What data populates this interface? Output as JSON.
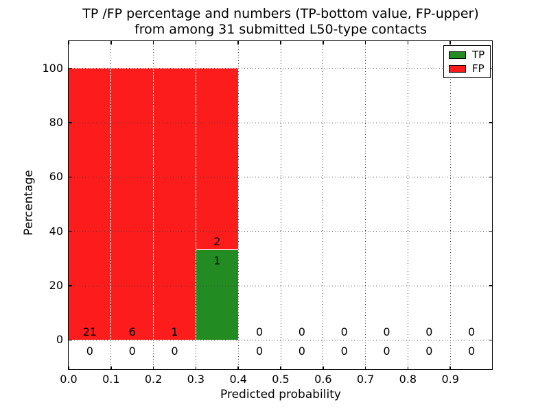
{
  "title": {
    "line1": "TP /FP percentage and numbers (TP-bottom value, FP-upper)",
    "line2": "from among 31 submitted L50-type contacts"
  },
  "colors": {
    "tp_green": "#228b22",
    "fp_red": "#fc1c1c",
    "axis": "#000000",
    "grid_dot": "#3a3a3a",
    "background": "#ffffff"
  },
  "chart_data": {
    "type": "bar",
    "stacked": true,
    "title": "TP /FP percentage and numbers (TP-bottom value, FP-upper)\nfrom among 31 submitted L50-type contacts",
    "xlabel": "Predicted probability",
    "ylabel": "Percentage",
    "xlim": [
      0.0,
      1.0
    ],
    "ylim": [
      -11,
      110
    ],
    "xticks": [
      "0.0",
      "0.1",
      "0.2",
      "0.3",
      "0.4",
      "0.5",
      "0.6",
      "0.7",
      "0.8",
      "0.9"
    ],
    "yticks": [
      0,
      20,
      40,
      60,
      80,
      100
    ],
    "grid": "dotted",
    "bin_width": 0.1,
    "bin_starts": [
      0.0,
      0.1,
      0.2,
      0.3,
      0.4,
      0.5,
      0.6,
      0.7,
      0.8,
      0.9
    ],
    "total_submitted": 31,
    "legend": {
      "position": "upper right",
      "entries": [
        {
          "label": "TP",
          "color": "#228b22"
        },
        {
          "label": "FP",
          "color": "#fc1c1c"
        }
      ]
    },
    "series": [
      {
        "name": "TP",
        "color": "#228b22",
        "percentages": [
          0,
          0,
          0,
          33.33,
          0,
          0,
          0,
          0,
          0,
          0
        ],
        "counts": [
          0,
          0,
          0,
          1,
          0,
          0,
          0,
          0,
          0,
          0
        ]
      },
      {
        "name": "FP",
        "color": "#fc1c1c",
        "percentages": [
          100,
          100,
          100,
          66.67,
          0,
          0,
          0,
          0,
          0,
          0
        ],
        "counts": [
          21,
          6,
          1,
          2,
          0,
          0,
          0,
          0,
          0,
          0
        ]
      }
    ]
  }
}
